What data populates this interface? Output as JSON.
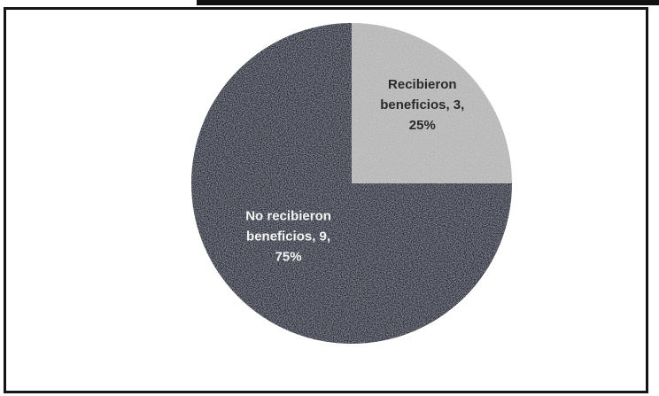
{
  "chart_data": {
    "type": "pie",
    "title": "",
    "slices": [
      {
        "label_lines": [
          "Recibieron",
          "beneficios, 3,",
          "25%"
        ],
        "category": "Recibieron beneficios",
        "value": 3,
        "percent": 25,
        "color": "#b4b4b4",
        "label_color": "#2a2a2a"
      },
      {
        "label_lines": [
          "No recibieron",
          "beneficios, 9,",
          "75%"
        ],
        "category": "No recibieron beneficios",
        "value": 9,
        "percent": 75,
        "color": "#232a3c",
        "label_color": "#f4f4f4"
      }
    ],
    "legend": "none"
  }
}
